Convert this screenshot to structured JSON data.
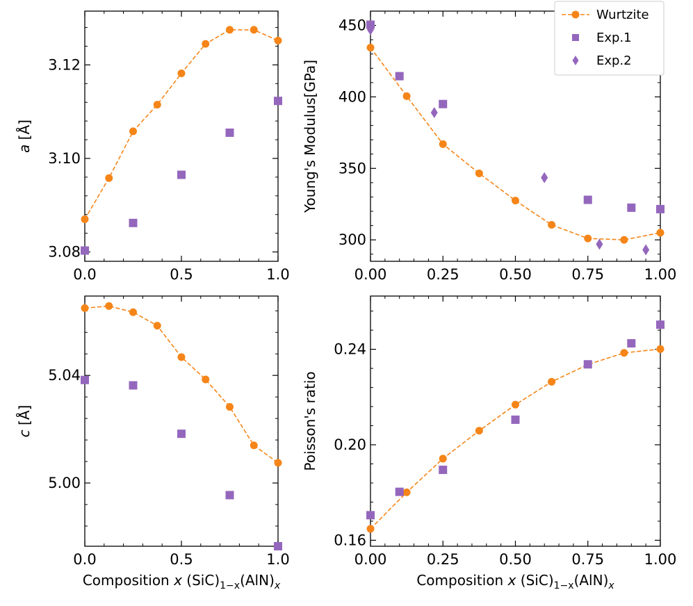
{
  "colors": {
    "wurtzite": "#f58518",
    "exp": "#9467bd",
    "axes": "#000000"
  },
  "legend": {
    "placement": "top-right",
    "entries": [
      {
        "key": "wurtzite",
        "label": "Wurtzite",
        "marker": "circle-line"
      },
      {
        "key": "exp1",
        "label": "Exp.1",
        "marker": "square"
      },
      {
        "key": "exp2",
        "label": "Exp.2",
        "marker": "diamond"
      }
    ]
  },
  "chart_data": [
    {
      "id": "a",
      "type": "line",
      "ylabel_main": "a",
      "ylabel_unit": "[Å]",
      "xlabel": "",
      "xlim": [
        0,
        1.0
      ],
      "ylim": [
        3.078,
        3.1315
      ],
      "xticks": [
        0.0,
        0.5,
        1.0
      ],
      "xtick_labels": [
        "0.0",
        "0.5",
        "1.0"
      ],
      "yticks": [
        3.08,
        3.1,
        3.12
      ],
      "ytick_labels": [
        "3.08",
        "3.10",
        "3.12"
      ],
      "series": [
        {
          "key": "wurtzite",
          "name": "Wurtzite",
          "x": [
            0,
            0.125,
            0.25,
            0.375,
            0.5,
            0.625,
            0.75,
            0.875,
            1.0
          ],
          "y": [
            3.087,
            3.0958,
            3.1058,
            3.1115,
            3.1182,
            3.1245,
            3.1275,
            3.1275,
            3.1252
          ]
        },
        {
          "key": "exp1",
          "name": "Exp.1",
          "x": [
            0,
            0.25,
            0.5,
            0.75,
            1.0
          ],
          "y": [
            3.0803,
            3.0862,
            3.0965,
            3.1055,
            3.1123
          ]
        }
      ]
    },
    {
      "id": "E",
      "type": "line",
      "ylabel_main": "Young's Modulus[GPa]",
      "ylabel_unit": "",
      "xlabel": "",
      "xlim": [
        0,
        1.0
      ],
      "ylim": [
        285,
        460
      ],
      "xticks": [
        0,
        0.25,
        0.5,
        0.75,
        1.0
      ],
      "xtick_labels": [
        "0.00",
        "0.25",
        "0.50",
        "0.75",
        "1.00"
      ],
      "yticks": [
        300,
        350,
        400,
        450
      ],
      "ytick_labels": [
        "300",
        "350",
        "400",
        "450"
      ],
      "series": [
        {
          "key": "wurtzite",
          "name": "Wurtzite",
          "x": [
            0,
            0.125,
            0.25,
            0.375,
            0.5,
            0.625,
            0.75,
            0.875,
            1.0
          ],
          "y": [
            434.5,
            400.5,
            367,
            346.5,
            327.5,
            310.5,
            301,
            300,
            305
          ]
        },
        {
          "key": "exp1",
          "name": "Exp.1",
          "x": [
            0,
            0.1,
            0.25,
            0.75,
            0.9,
            1.0
          ],
          "y": [
            450.5,
            414.5,
            395,
            328,
            322.5,
            321.5
          ]
        },
        {
          "key": "exp2",
          "name": "Exp.2",
          "x": [
            0,
            0.22,
            0.6,
            0.79,
            0.95
          ],
          "y": [
            447,
            389,
            343.5,
            297,
            293
          ]
        }
      ]
    },
    {
      "id": "c",
      "type": "line",
      "ylabel_main": "c",
      "ylabel_unit": "[Å]",
      "xlabel": "Composition x (SiC)1−x(AlN)x",
      "xlim": [
        0,
        1.0
      ],
      "ylim": [
        4.9765,
        5.0695
      ],
      "xticks": [
        0.0,
        0.5,
        1.0
      ],
      "xtick_labels": [
        "0.0",
        "0.5",
        "1.0"
      ],
      "yticks": [
        5.0,
        5.04
      ],
      "ytick_labels": [
        "5.00",
        "5.04"
      ],
      "series": [
        {
          "key": "wurtzite",
          "name": "Wurtzite",
          "x": [
            0,
            0.125,
            0.25,
            0.375,
            0.5,
            0.625,
            0.75,
            0.875,
            1.0
          ],
          "y": [
            5.065,
            5.0658,
            5.0635,
            5.0585,
            5.0468,
            5.0385,
            5.0283,
            5.014,
            5.0075
          ]
        },
        {
          "key": "exp1",
          "name": "Exp.1",
          "x": [
            0,
            0.25,
            0.5,
            0.75,
            1.0
          ],
          "y": [
            5.0383,
            5.0363,
            5.0183,
            4.9955,
            4.9765
          ]
        }
      ]
    },
    {
      "id": "nu",
      "type": "line",
      "ylabel_main": "Poisson's ratio",
      "ylabel_unit": "",
      "xlabel": "Composition x (SiC)1−x(AlN)x",
      "xlim": [
        0,
        1.0
      ],
      "ylim": [
        0.1575,
        0.2623
      ],
      "xticks": [
        0,
        0.25,
        0.5,
        0.75,
        1.0
      ],
      "xtick_labels": [
        "0.00",
        "0.25",
        "0.50",
        "0.75",
        "1.00"
      ],
      "yticks": [
        0.16,
        0.2,
        0.24
      ],
      "ytick_labels": [
        "0.16",
        "0.20",
        "0.24"
      ],
      "series": [
        {
          "key": "wurtzite",
          "name": "Wurtzite",
          "x": [
            0,
            0.125,
            0.25,
            0.375,
            0.5,
            0.625,
            0.75,
            0.875,
            1.0
          ],
          "y": [
            0.1648,
            0.1801,
            0.1942,
            0.2059,
            0.2168,
            0.2264,
            0.2336,
            0.2385,
            0.2401
          ]
        },
        {
          "key": "exp1",
          "name": "Exp.1",
          "x": [
            0,
            0.1,
            0.25,
            0.5,
            0.75,
            0.9,
            1.0
          ],
          "y": [
            0.1705,
            0.1803,
            0.1895,
            0.2105,
            0.2337,
            0.2425,
            0.2503
          ]
        }
      ]
    }
  ]
}
